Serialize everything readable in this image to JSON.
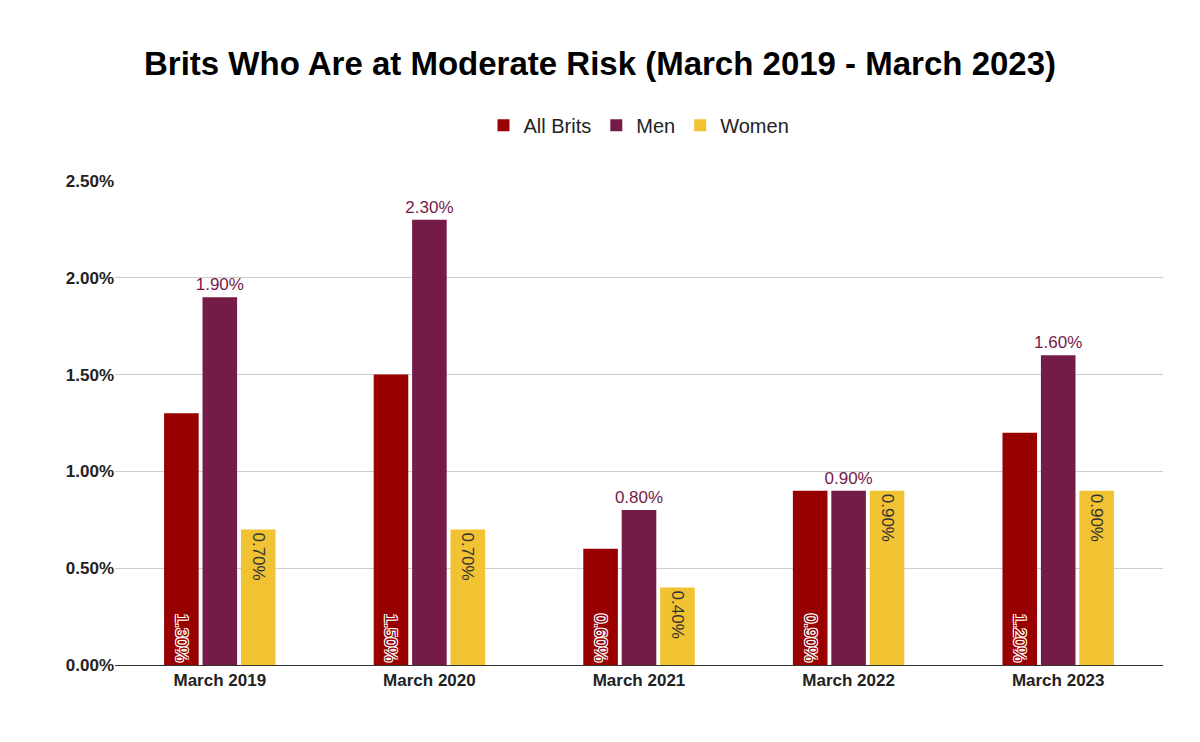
{
  "chart_data": {
    "type": "bar",
    "title": "Brits Who Are at Moderate Risk (March 2019 - March 2023)",
    "categories": [
      "March 2019",
      "March 2020",
      "March 2021",
      "March 2022",
      "March 2023"
    ],
    "series": [
      {
        "name": "All Brits",
        "color": "#990000",
        "values": [
          1.3,
          1.5,
          0.6,
          0.9,
          1.2
        ],
        "value_labels": [
          "1.30%",
          "1.50%",
          "0.60%",
          "0.90%",
          "1.20%"
        ]
      },
      {
        "name": "Men",
        "color": "#741b47",
        "values": [
          1.9,
          2.3,
          0.8,
          0.9,
          1.6
        ],
        "value_labels": [
          "1.90%",
          "2.30%",
          "0.80%",
          "0.90%",
          "1.60%"
        ]
      },
      {
        "name": "Women",
        "color": "#f1c232",
        "values": [
          0.7,
          0.7,
          0.4,
          0.9,
          0.9
        ],
        "value_labels": [
          "0.70%",
          "0.70%",
          "0.40%",
          "0.90%",
          "0.90%"
        ]
      }
    ],
    "ylim": [
      0,
      2.5
    ],
    "yticks": [
      {
        "value": 0,
        "label": "0.00%"
      },
      {
        "value": 0.5,
        "label": "0.50%"
      },
      {
        "value": 1,
        "label": "1.00%"
      },
      {
        "value": 1.5,
        "label": "1.50%"
      },
      {
        "value": 2,
        "label": "2.00%"
      },
      {
        "value": 2.5,
        "label": "2.50%"
      }
    ],
    "grid": true,
    "legend": "top",
    "data_labels": true
  }
}
